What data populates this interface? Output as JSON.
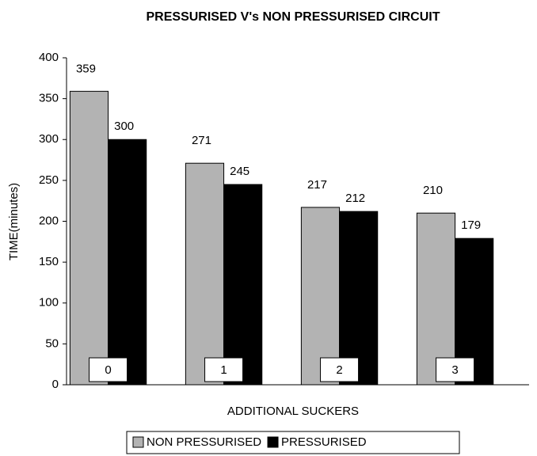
{
  "chart_data": {
    "type": "bar",
    "title": "PRESSURISED V's NON PRESSURISED CIRCUIT",
    "x_label": "ADDITIONAL SUCKERS",
    "y_label": "TIME(minutes)",
    "categories": [
      "0",
      "1",
      "2",
      "3"
    ],
    "series": [
      {
        "name": "NON PRESSURISED",
        "color": "#b3b3b3",
        "values": [
          359,
          271,
          217,
          210
        ]
      },
      {
        "name": "PRESSURISED",
        "color": "#000000",
        "values": [
          300,
          245,
          212,
          179
        ]
      }
    ],
    "ylim": [
      0,
      400
    ],
    "yticks": [
      0,
      50,
      100,
      150,
      200,
      250,
      300,
      350,
      400
    ],
    "legend": "bottom"
  }
}
